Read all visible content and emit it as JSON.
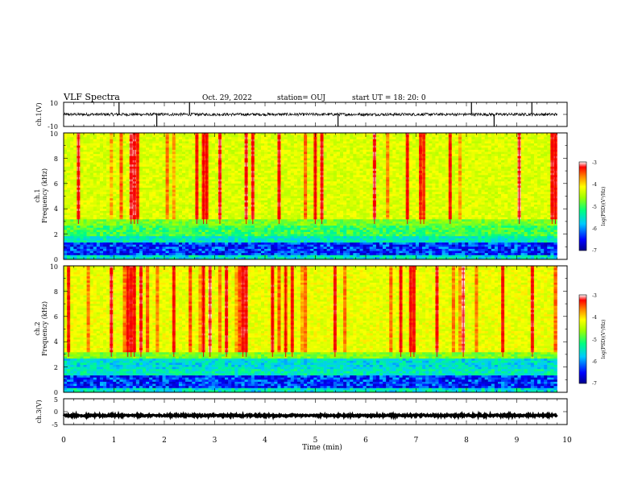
{
  "header": {
    "title": "VLF Spectra",
    "date": "Oct. 29, 2022",
    "station": "station= OUJ",
    "start": "start  UT  =   18: 20: 0"
  },
  "chart_data": [
    {
      "id": "ch1-waveform",
      "type": "line",
      "ylabel": "ch.1(V)",
      "ylim": [
        -10,
        10
      ],
      "yticks": [
        10,
        -10
      ],
      "baseline": 0,
      "noise_amplitude": 1.2,
      "spike_times_min": [
        1.1,
        1.85,
        2.5,
        5.45,
        8.1,
        8.55,
        9.3
      ]
    },
    {
      "id": "ch1-spectrogram",
      "type": "heatmap",
      "ylabel_line1": "ch.1",
      "ylabel_line2": "Frequency  (kHz)",
      "xlim": [
        0,
        10
      ],
      "ylim": [
        0,
        10
      ],
      "yticks": [
        0,
        2,
        4,
        6,
        8,
        10
      ],
      "colorbar": {
        "label": "log(PSD)(V²/Hz)",
        "range": [
          -7,
          -3
        ],
        "ticks": [
          -3,
          -4,
          -5,
          -6,
          -7
        ]
      },
      "data_ends_min": 9.8
    },
    {
      "id": "ch2-spectrogram",
      "type": "heatmap",
      "ylabel_line1": "ch.2",
      "ylabel_line2": "Frequency  (kHz)",
      "xlim": [
        0,
        10
      ],
      "ylim": [
        0,
        10
      ],
      "yticks": [
        0,
        2,
        4,
        6,
        8,
        10
      ],
      "colorbar": {
        "label": "log(PSD)(V²/Hz)",
        "range": [
          -7,
          -3
        ],
        "ticks": [
          -3,
          -4,
          -5,
          -6,
          -7
        ]
      },
      "data_ends_min": 9.8
    },
    {
      "id": "ch3-waveform",
      "type": "line",
      "ylabel": "ch.3(V)",
      "ylim": [
        -5,
        5
      ],
      "yticks": [
        5,
        0,
        -5
      ],
      "baseline": -1.5,
      "noise_amplitude": 0.3
    }
  ],
  "x_axis": {
    "label": "Time  (min)",
    "range": [
      0,
      10
    ],
    "ticks": [
      "0",
      "1",
      "2",
      "3",
      "4",
      "5",
      "6",
      "7",
      "8",
      "9",
      "10"
    ]
  },
  "colors": {
    "colormap": [
      "#00008b",
      "#0000ff",
      "#00c8ff",
      "#00ff80",
      "#a0ff00",
      "#ffff00",
      "#ff8000",
      "#ff0000",
      "#ffffff"
    ]
  }
}
